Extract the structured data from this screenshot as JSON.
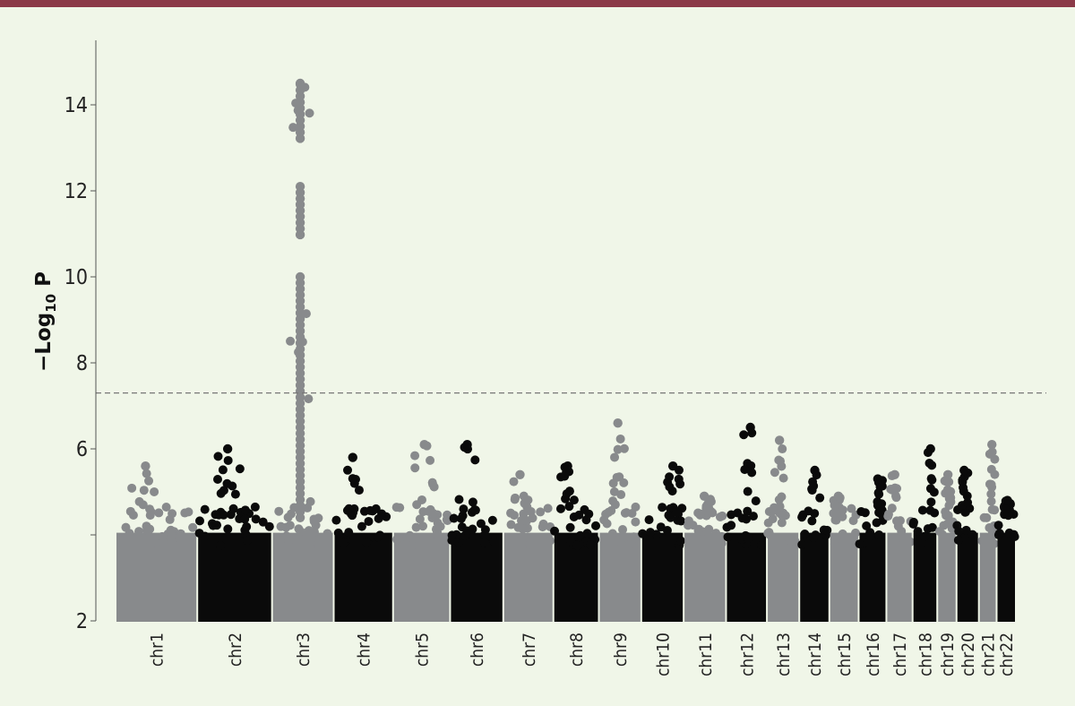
{
  "header": {
    "bar_color": "#8b3a48"
  },
  "chart_data": {
    "type": "scatter",
    "subtype": "manhattan",
    "title": "",
    "xlabel": "",
    "ylabel": {
      "prefix": "−Log",
      "subscript": "10",
      "suffix": " P"
    },
    "ylim": [
      2,
      15.5
    ],
    "yticks": [
      2,
      4,
      6,
      8,
      10,
      12,
      14
    ],
    "ytick_labels": [
      "2",
      "",
      "6",
      "8",
      "10",
      "12",
      "14"
    ],
    "significance_threshold": 7.3,
    "grid": false,
    "legend": "none",
    "colors": {
      "odd": "#888a8c",
      "even": "#0a0a0a",
      "threshold": "#777777",
      "background": "#f0f6e8"
    },
    "chromosomes": [
      {
        "name": "chr1",
        "start": 0,
        "end": 10.6,
        "peak": 5.6,
        "color": "odd"
      },
      {
        "name": "chr2",
        "start": 10.6,
        "end": 20.3,
        "peak": 6.0,
        "color": "even"
      },
      {
        "name": "chr3",
        "start": 20.3,
        "end": 28.3,
        "peak": 14.5,
        "color": "odd"
      },
      {
        "name": "chr4",
        "start": 28.3,
        "end": 36.0,
        "peak": 5.8,
        "color": "even"
      },
      {
        "name": "chr5",
        "start": 36.0,
        "end": 43.4,
        "peak": 6.1,
        "color": "odd"
      },
      {
        "name": "chr6",
        "start": 43.4,
        "end": 50.3,
        "peak": 6.1,
        "color": "even"
      },
      {
        "name": "chr7",
        "start": 50.3,
        "end": 56.8,
        "peak": 5.4,
        "color": "odd"
      },
      {
        "name": "chr8",
        "start": 56.8,
        "end": 62.7,
        "peak": 5.6,
        "color": "even"
      },
      {
        "name": "chr9",
        "start": 62.7,
        "end": 68.2,
        "peak": 6.6,
        "color": "odd"
      },
      {
        "name": "chr10",
        "start": 68.2,
        "end": 73.7,
        "peak": 5.6,
        "color": "even"
      },
      {
        "name": "chr11",
        "start": 73.7,
        "end": 79.2,
        "peak": 4.9,
        "color": "odd"
      },
      {
        "name": "chr12",
        "start": 79.2,
        "end": 84.5,
        "peak": 6.5,
        "color": "even"
      },
      {
        "name": "chr13",
        "start": 84.5,
        "end": 88.7,
        "peak": 6.2,
        "color": "odd"
      },
      {
        "name": "chr14",
        "start": 88.7,
        "end": 92.6,
        "peak": 5.5,
        "color": "even"
      },
      {
        "name": "chr15",
        "start": 92.6,
        "end": 96.4,
        "peak": 4.9,
        "color": "odd"
      },
      {
        "name": "chr16",
        "start": 96.4,
        "end": 100.0,
        "peak": 5.3,
        "color": "even"
      },
      {
        "name": "chr17",
        "start": 100.0,
        "end": 103.4,
        "peak": 5.4,
        "color": "odd"
      },
      {
        "name": "chr18",
        "start": 103.4,
        "end": 106.6,
        "peak": 6.0,
        "color": "even"
      },
      {
        "name": "chr19",
        "start": 106.6,
        "end": 109.1,
        "peak": 5.4,
        "color": "odd"
      },
      {
        "name": "chr20",
        "start": 109.1,
        "end": 112.0,
        "peak": 5.5,
        "color": "even"
      },
      {
        "name": "chr21",
        "start": 112.0,
        "end": 114.3,
        "peak": 6.1,
        "color": "odd"
      },
      {
        "name": "chr22",
        "start": 114.3,
        "end": 116.8,
        "peak": 4.8,
        "color": "even"
      }
    ]
  }
}
